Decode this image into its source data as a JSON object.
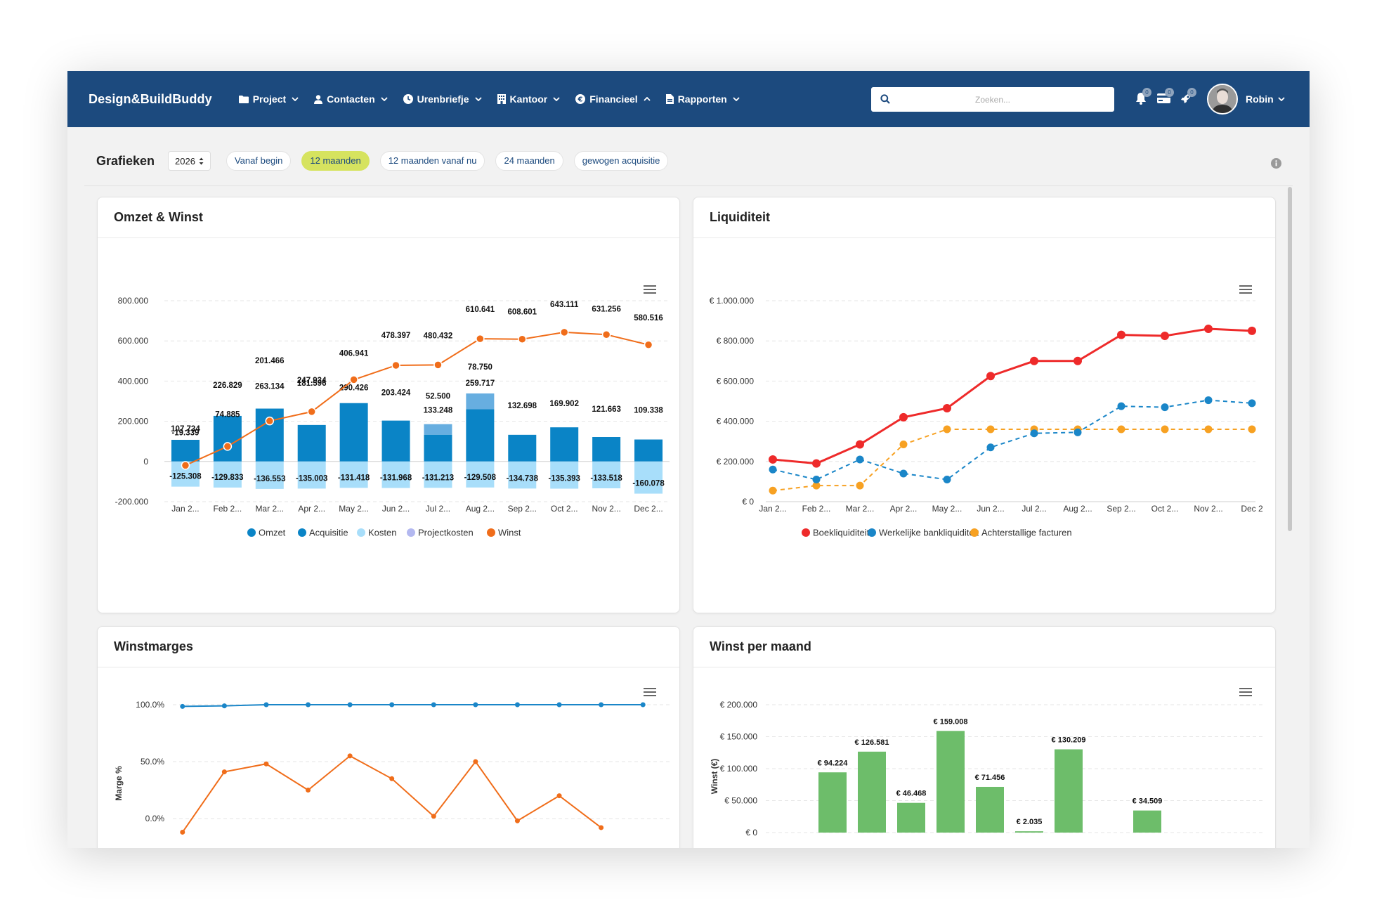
{
  "app": {
    "brand": "Design&BuildBuddy",
    "nav": [
      {
        "label": "Project",
        "icon": "folder-icon"
      },
      {
        "label": "Contacten",
        "icon": "person-icon"
      },
      {
        "label": "Urenbriefje",
        "icon": "clock-icon"
      },
      {
        "label": "Kantoor",
        "icon": "building-icon"
      },
      {
        "label": "Financieel",
        "icon": "euro-icon"
      },
      {
        "label": "Rapporten",
        "icon": "document-icon"
      }
    ],
    "search_placeholder": "Zoeken...",
    "notifications": [
      {
        "icon": "bell-icon",
        "badge": "0"
      },
      {
        "icon": "credit-card-icon",
        "badge": "0"
      },
      {
        "icon": "rocket-icon",
        "badge": "0"
      }
    ],
    "user_name": "Robin"
  },
  "toolbar": {
    "title": "Grafieken",
    "year": "2026",
    "filters": [
      "Vanaf begin",
      "12 maanden",
      "12 maanden vanaf nu",
      "24 maanden",
      "gewogen acquisitie"
    ],
    "active_filter": "12 maanden"
  },
  "cards": {
    "omzet": "Omzet & Winst",
    "liquiditeit": "Liquiditeit",
    "winstmarges": "Winstmarges",
    "winst_per_maand": "Winst per maand"
  },
  "colors": {
    "navbar": "#1c4a7e",
    "omzet": "#0a84c6",
    "acquisitie": "#67aee0",
    "kosten": "#a8defa",
    "projectkosten": "#b3b8f0",
    "winst": "#f06d1a",
    "boekliquiditeit": "#ee2a2a",
    "bankliquiditeit": "#1a86c8",
    "achterstallig": "#f7a122",
    "green_bar": "#6dbd6a"
  },
  "chart_data": [
    {
      "id": "omzet",
      "type": "bar",
      "categories": [
        "Jan 2...",
        "Feb 2...",
        "Mar 2...",
        "Apr 2...",
        "May 2...",
        "Jun 2...",
        "Jul 2...",
        "Aug 2...",
        "Sep 2...",
        "Oct 2...",
        "Nov 2...",
        "Dec 2..."
      ],
      "ylim": [
        -200000,
        800000
      ],
      "yticks": [
        "-200.000",
        "0",
        "200.000",
        "400.000",
        "600.000",
        "800.000"
      ],
      "ytick_values": [
        -200000,
        0,
        200000,
        400000,
        600000,
        800000
      ],
      "series": [
        {
          "name": "Omzet",
          "values": [
            107734,
            226829,
            263134,
            181596,
            290426,
            203424,
            133248,
            259717,
            132698,
            169902,
            121663,
            109338
          ]
        },
        {
          "name": "Acquisitie",
          "values": [
            0,
            0,
            0,
            0,
            0,
            0,
            52500,
            78750,
            0,
            0,
            0,
            0
          ]
        },
        {
          "name": "Kosten",
          "values": [
            -125308,
            -129833,
            -136553,
            -135003,
            -131418,
            -131968,
            -131213,
            -129508,
            -134738,
            -135393,
            -133518,
            -160078
          ]
        },
        {
          "name": "Projectkosten",
          "values": [
            0,
            0,
            0,
            0,
            0,
            0,
            0,
            0,
            0,
            0,
            0,
            0
          ]
        },
        {
          "name": "Winst",
          "values": [
            -19339,
            74885,
            201466,
            247934,
            406941,
            478397,
            480432,
            610641,
            608601,
            643111,
            631256,
            580516
          ]
        }
      ],
      "labels_omzet": [
        "107.734",
        "226.829",
        "263.134",
        "181.596",
        "290.426",
        "203.424",
        "133.248",
        "259.717",
        "132.698",
        "169.902",
        "121.663",
        "109.338"
      ],
      "labels_acquisitie": [
        "",
        "",
        "",
        "",
        "",
        "",
        "52.500",
        "78.750",
        "",
        "",
        "",
        ""
      ],
      "labels_kosten": [
        "-125.308",
        "-129.833",
        "-136.553",
        "-135.003",
        "-131.418",
        "-131.968",
        "-131.213",
        "-129.508",
        "-134.738",
        "-135.393",
        "-133.518",
        "-160.078"
      ],
      "labels_winst": [
        "-19.339",
        "74.885",
        "201.466",
        "247.934",
        "406.941",
        "478.397",
        "480.432",
        "610.641",
        "608.601",
        "643.111",
        "631.256",
        "580.516"
      ]
    },
    {
      "id": "liquiditeit",
      "type": "line",
      "categories": [
        "Jan 2...",
        "Feb 2...",
        "Mar 2...",
        "Apr 2...",
        "May 2...",
        "Jun 2...",
        "Jul 2...",
        "Aug 2...",
        "Sep 2...",
        "Oct 2...",
        "Nov 2...",
        "Dec 2"
      ],
      "ylim": [
        0,
        1000000
      ],
      "yticks": [
        "€ 0",
        "€ 200.000",
        "€ 400.000",
        "€ 600.000",
        "€ 800.000",
        "€ 1.000.000"
      ],
      "ytick_values": [
        0,
        200000,
        400000,
        600000,
        800000,
        1000000
      ],
      "series": [
        {
          "name": "Boekliquiditeit",
          "style": "solid",
          "values": [
            210000,
            190000,
            285000,
            420000,
            465000,
            625000,
            700000,
            700000,
            830000,
            825000,
            860000,
            850000
          ]
        },
        {
          "name": "Werkelijke bankliquiditeit",
          "style": "dashed",
          "values": [
            160000,
            110000,
            210000,
            140000,
            110000,
            270000,
            340000,
            345000,
            475000,
            470000,
            505000,
            490000
          ]
        },
        {
          "name": "Achterstallige facturen",
          "style": "dashed",
          "values": [
            55000,
            80000,
            80000,
            285000,
            360000,
            360000,
            360000,
            360000,
            360000,
            360000,
            360000,
            360000
          ]
        }
      ]
    },
    {
      "id": "winstmarges",
      "type": "line",
      "ylabel": "Marge %",
      "yticks": [
        "0.0%",
        "50.0%",
        "100.0%"
      ],
      "ytick_values": [
        0,
        50,
        100
      ],
      "series": [
        {
          "values": [
            98.5,
            99,
            100,
            100,
            100,
            100,
            100,
            100,
            100,
            100,
            100,
            100
          ]
        },
        {
          "values": [
            -12,
            41,
            48,
            25,
            55,
            35,
            2,
            50,
            -2,
            20,
            -8,
            null
          ]
        }
      ]
    },
    {
      "id": "winst_per_maand",
      "type": "bar",
      "ylabel": "Winst (€)",
      "yticks": [
        "€ 0",
        "€ 50.000",
        "€ 100.000",
        "€ 150.000",
        "€ 200.000"
      ],
      "ytick_values": [
        0,
        50000,
        100000,
        150000,
        200000
      ],
      "values": [
        0,
        94224,
        126581,
        46468,
        159008,
        71456,
        2035,
        130209,
        0,
        34509,
        0,
        0
      ],
      "labels": [
        "",
        "€ 94.224",
        "€ 126.581",
        "€ 46.468",
        "€ 159.008",
        "€ 71.456",
        "€ 2.035",
        "€ 130.209",
        "",
        "€ 34.509",
        "",
        ""
      ]
    }
  ]
}
